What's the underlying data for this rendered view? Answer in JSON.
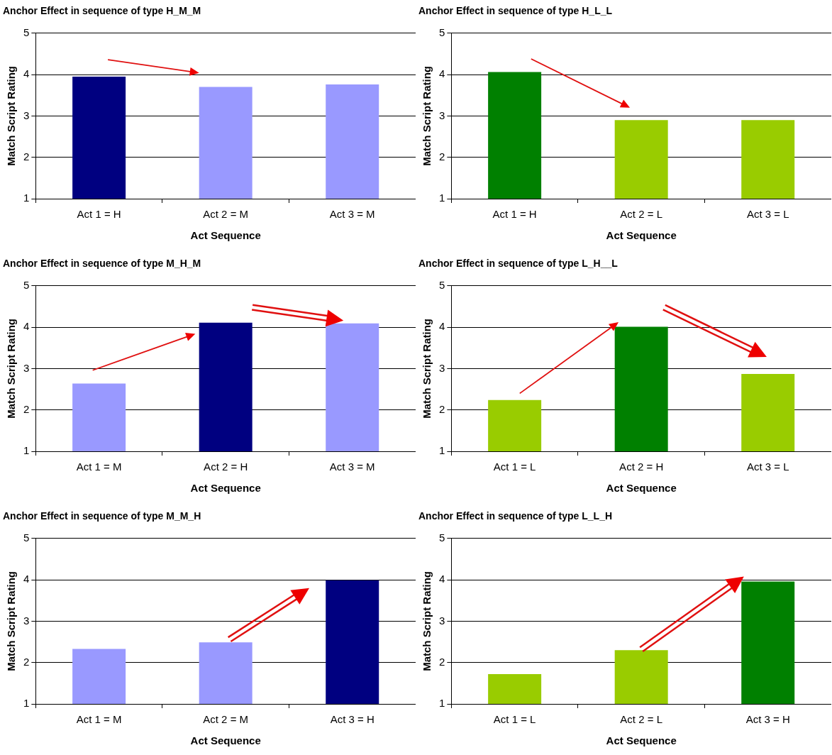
{
  "chart_data": [
    {
      "type": "bar",
      "title": "Anchor Effect in sequence of type H_M_M",
      "xlabel": "Act Sequence",
      "ylabel": "Match Script Rating",
      "categories": [
        "Act 1 = H",
        "Act 2 = M",
        "Act 3 = M"
      ],
      "values": [
        3.95,
        3.7,
        3.76
      ],
      "colors": [
        "#000080",
        "#9999ff",
        "#9999ff"
      ],
      "ylim": [
        1,
        5
      ],
      "yticks": [
        1,
        2,
        3,
        4,
        5
      ],
      "grid": "y"
    },
    {
      "type": "bar",
      "title": "Anchor Effect in sequence of type H_L_L",
      "xlabel": "Act Sequence",
      "ylabel": "Match Script Rating",
      "categories": [
        "Act 1 = H",
        "Act 2 = L",
        "Act 3 = L"
      ],
      "values": [
        4.06,
        2.9,
        2.9
      ],
      "colors": [
        "#008000",
        "#99cc00",
        "#99cc00"
      ],
      "ylim": [
        1,
        5
      ],
      "yticks": [
        1,
        2,
        3,
        4,
        5
      ],
      "grid": "y"
    },
    {
      "type": "bar",
      "title": "Anchor Effect in sequence of type M_H_M",
      "xlabel": "Act Sequence",
      "ylabel": "Match Script Rating",
      "categories": [
        "Act 1 = M",
        "Act 2 = H",
        "Act 3 = M"
      ],
      "values": [
        2.64,
        4.11,
        4.09
      ],
      "colors": [
        "#9999ff",
        "#000080",
        "#9999ff"
      ],
      "ylim": [
        1,
        5
      ],
      "yticks": [
        1,
        2,
        3,
        4,
        5
      ],
      "grid": "y"
    },
    {
      "type": "bar",
      "title": "Anchor Effect in sequence of type L_H__L",
      "xlabel": "Act Sequence",
      "ylabel": "Match Script Rating",
      "categories": [
        "Act 1 = L",
        "Act 2 = H",
        "Act 3 = L"
      ],
      "values": [
        2.24,
        4.01,
        2.87
      ],
      "colors": [
        "#99cc00",
        "#008000",
        "#99cc00"
      ],
      "ylim": [
        1,
        5
      ],
      "yticks": [
        1,
        2,
        3,
        4,
        5
      ],
      "grid": "y"
    },
    {
      "type": "bar",
      "title": "Anchor Effect in sequence of type M_M_H",
      "xlabel": "Act Sequence",
      "ylabel": "Match Script Rating",
      "categories": [
        "Act 1 = M",
        "Act 2 = M",
        "Act 3 = H"
      ],
      "values": [
        2.33,
        2.49,
        3.99
      ],
      "colors": [
        "#9999ff",
        "#9999ff",
        "#000080"
      ],
      "ylim": [
        1,
        5
      ],
      "yticks": [
        1,
        2,
        3,
        4,
        5
      ],
      "grid": "y"
    },
    {
      "type": "bar",
      "title": "Anchor Effect in sequence of type L_L_H",
      "xlabel": "Act Sequence",
      "ylabel": "Match Script Rating",
      "categories": [
        "Act 1 = L",
        "Act 2 = L",
        "Act 3 = H"
      ],
      "values": [
        1.72,
        2.3,
        3.96
      ],
      "colors": [
        "#99cc00",
        "#99cc00",
        "#008000"
      ],
      "ylim": [
        1,
        5
      ],
      "yticks": [
        1,
        2,
        3,
        4,
        5
      ],
      "grid": "y"
    }
  ]
}
